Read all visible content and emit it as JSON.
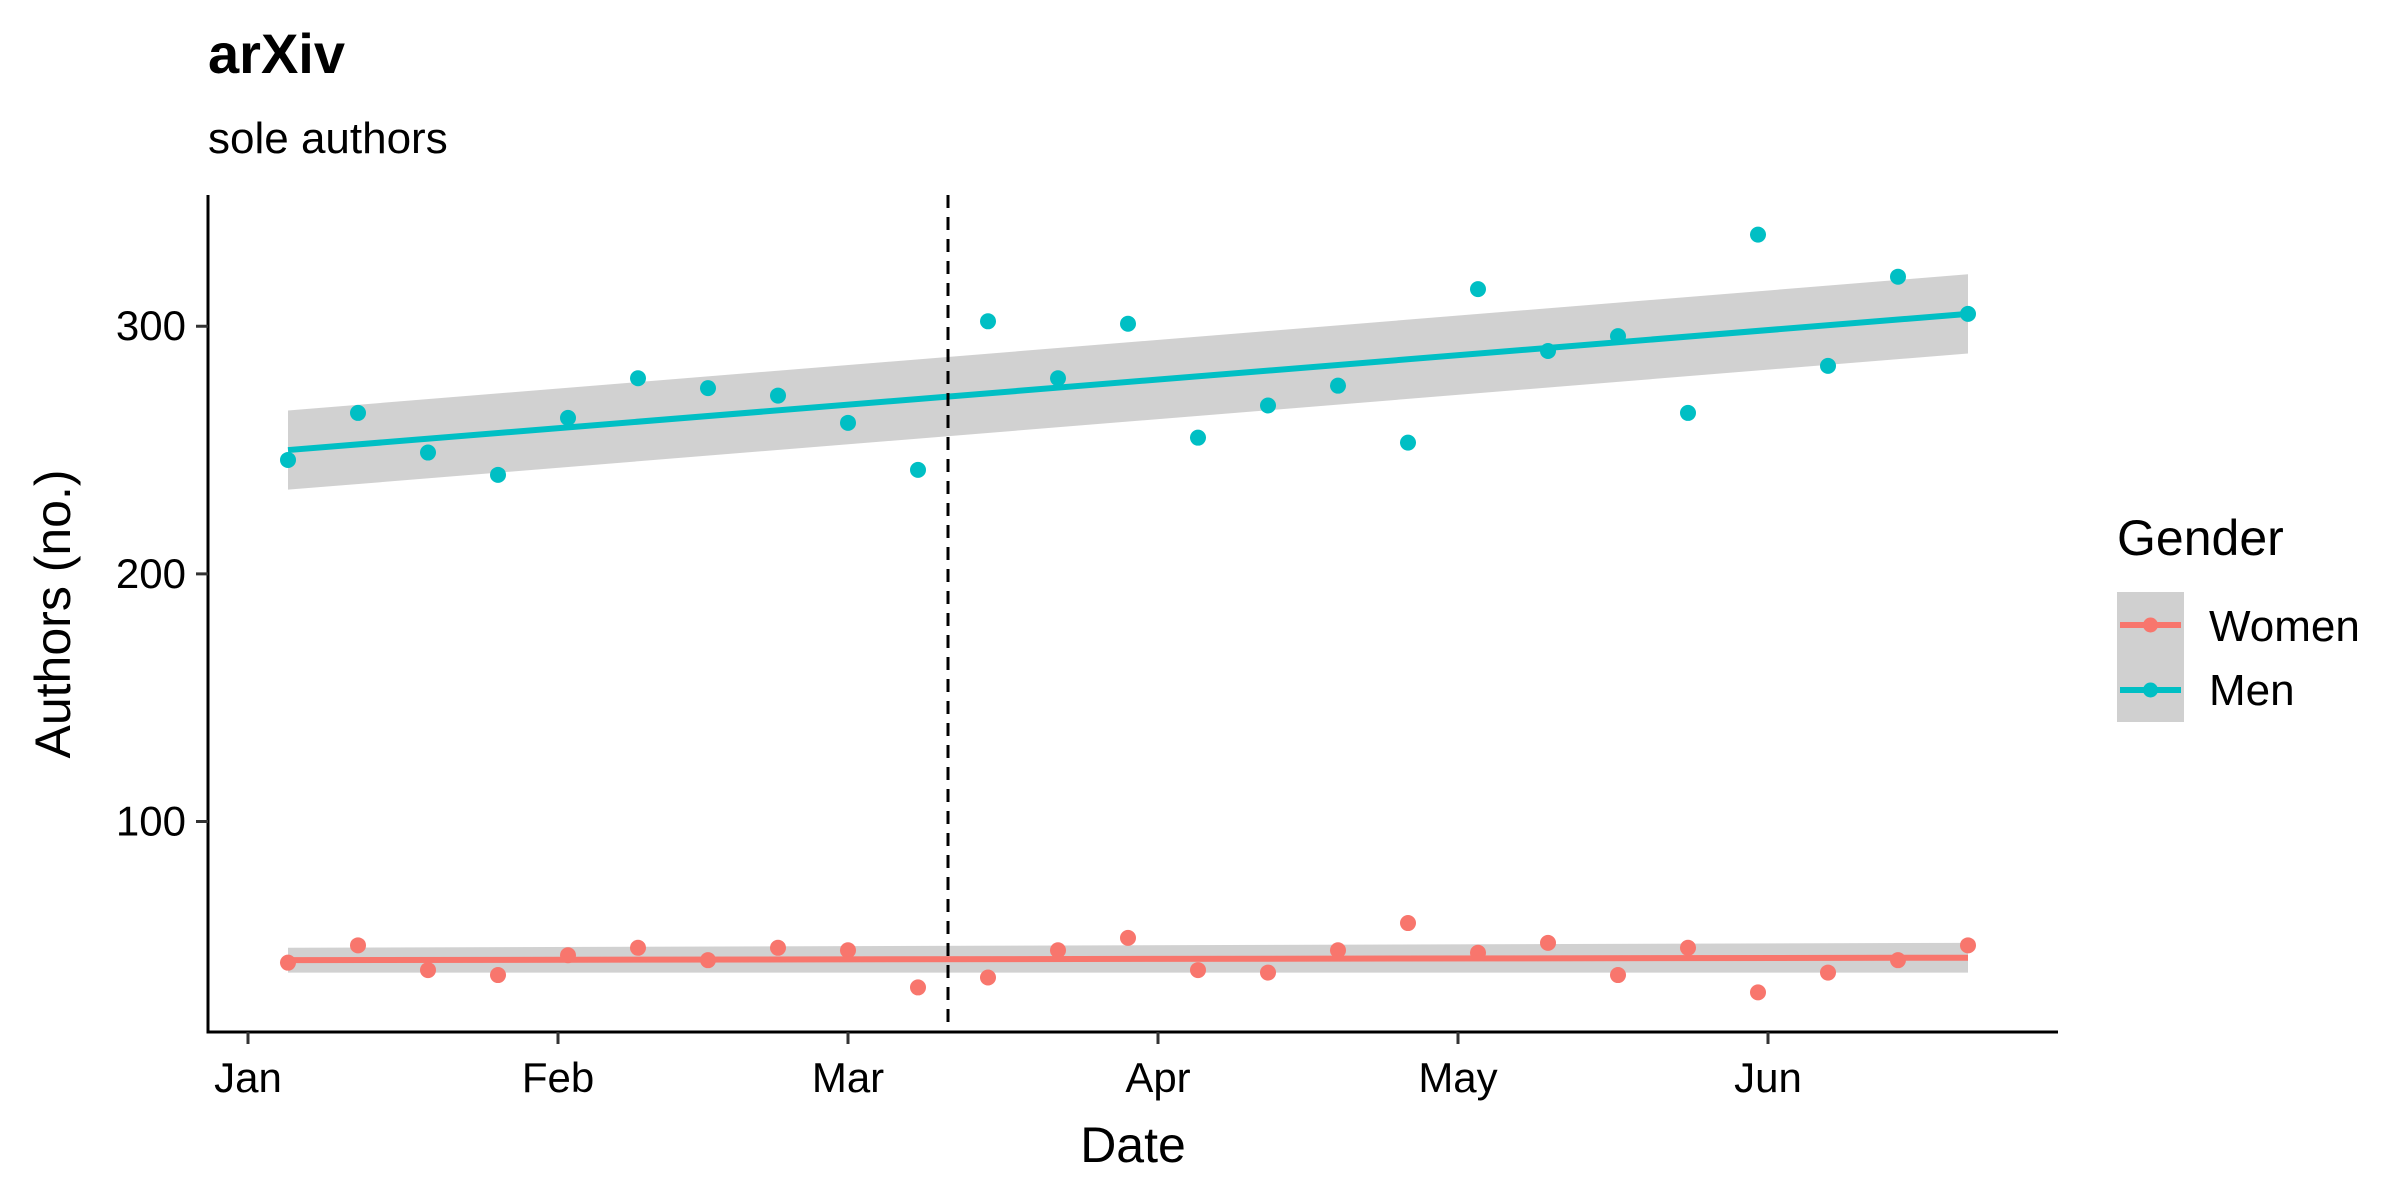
{
  "chart_data": {
    "type": "scatter",
    "title": "arXiv",
    "subtitle": "sole authors",
    "xlabel": "Date",
    "ylabel": "Authors (no.)",
    "x_tick_labels": [
      "Jan",
      "Feb",
      "Mar",
      "Apr",
      "May",
      "Jun"
    ],
    "x_tick_dates": [
      "2020-01-01",
      "2020-02-01",
      "2020-03-01",
      "2020-04-01",
      "2020-05-01",
      "2020-06-01"
    ],
    "xlim": [
      "2019-12-28",
      "2020-06-30"
    ],
    "y_ticks": [
      100,
      200,
      300
    ],
    "ylim": [
      15,
      353
    ],
    "grid": false,
    "reference_line": {
      "x": "2020-03-11",
      "style": "dashed",
      "color": "#000000"
    },
    "legend": {
      "title": "Gender",
      "position": "right",
      "entries": [
        "Women",
        "Men"
      ]
    },
    "x": [
      "2020-01-05",
      "2020-01-12",
      "2020-01-19",
      "2020-01-26",
      "2020-02-02",
      "2020-02-09",
      "2020-02-16",
      "2020-02-23",
      "2020-03-01",
      "2020-03-08",
      "2020-03-15",
      "2020-03-22",
      "2020-03-29",
      "2020-04-05",
      "2020-04-12",
      "2020-04-19",
      "2020-04-26",
      "2020-05-03",
      "2020-05-10",
      "2020-05-17",
      "2020-05-24",
      "2020-05-31",
      "2020-06-07",
      "2020-06-14",
      "2020-06-21"
    ],
    "series": [
      {
        "name": "Women",
        "color": "#F8766D",
        "values": [
          43,
          50,
          40,
          38,
          46,
          49,
          44,
          49,
          48,
          33,
          37,
          48,
          53,
          40,
          39,
          48,
          59,
          47,
          51,
          38,
          49,
          31,
          39,
          44,
          50
        ],
        "trend": {
          "start": 44,
          "end": 45,
          "band_start": [
            39,
            49
          ],
          "band_end": [
            39,
            51
          ]
        }
      },
      {
        "name": "Men",
        "color": "#00BFC4",
        "values": [
          246,
          265,
          249,
          240,
          263,
          279,
          275,
          272,
          261,
          242,
          302,
          279,
          301,
          255,
          268,
          276,
          253,
          315,
          290,
          296,
          265,
          337,
          284,
          320,
          305
        ],
        "trend": {
          "start": 250,
          "end": 305,
          "band_start": [
            234,
            266
          ],
          "band_end": [
            289,
            321
          ]
        }
      }
    ]
  }
}
